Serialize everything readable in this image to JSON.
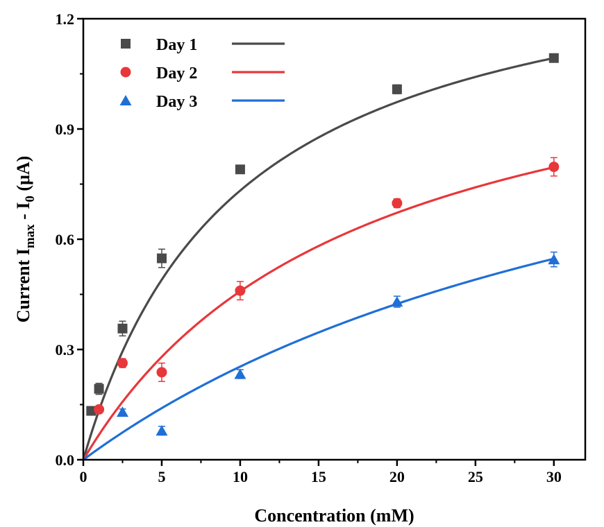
{
  "chart_data": {
    "type": "scatter",
    "xlabel": "Concentration (mM)",
    "ylabel": {
      "prefix": "Current I",
      "sub1": "max",
      "mid": " - I",
      "sub2": "0",
      "suffix": " (μA)"
    },
    "xlim": [
      0,
      32
    ],
    "ylim": [
      0,
      1.2
    ],
    "xticks": [
      0,
      5,
      10,
      15,
      20,
      25,
      30
    ],
    "yticks": [
      0.0,
      0.3,
      0.6,
      0.9,
      1.2
    ],
    "ytick_labels": [
      "0.0",
      "0.3",
      "0.6",
      "0.9",
      "1.2"
    ],
    "grid": false,
    "legend_position": "top-left",
    "series": [
      {
        "name": "Day 1",
        "marker": "square",
        "color": "#4a4a4a",
        "x": [
          0.5,
          1,
          2.5,
          5,
          10,
          20,
          30
        ],
        "y": [
          0.133,
          0.193,
          0.357,
          0.548,
          0.79,
          1.008,
          1.093
        ],
        "err": [
          0.007,
          0.015,
          0.02,
          0.025,
          0.01,
          0.012,
          0.01
        ],
        "fit": {
          "vmax": 1.45,
          "km": 9.8
        }
      },
      {
        "name": "Day 2",
        "marker": "circle",
        "color": "#e8373a",
        "x": [
          1,
          2.5,
          5,
          10,
          20,
          30
        ],
        "y": [
          0.137,
          0.263,
          0.238,
          0.46,
          0.698,
          0.797
        ],
        "err": [
          0.008,
          0.012,
          0.025,
          0.025,
          0.012,
          0.025
        ],
        "fit": {
          "vmax": 1.26,
          "km": 17.5
        }
      },
      {
        "name": "Day 3",
        "marker": "triangle",
        "color": "#1f6fd6",
        "x": [
          2.5,
          5,
          10,
          20,
          30
        ],
        "y": [
          0.13,
          0.079,
          0.233,
          0.43,
          0.545
        ],
        "err": [
          0.008,
          0.012,
          0.012,
          0.015,
          0.02
        ],
        "fit": {
          "vmax": 1.3,
          "km": 41.3
        }
      }
    ]
  }
}
